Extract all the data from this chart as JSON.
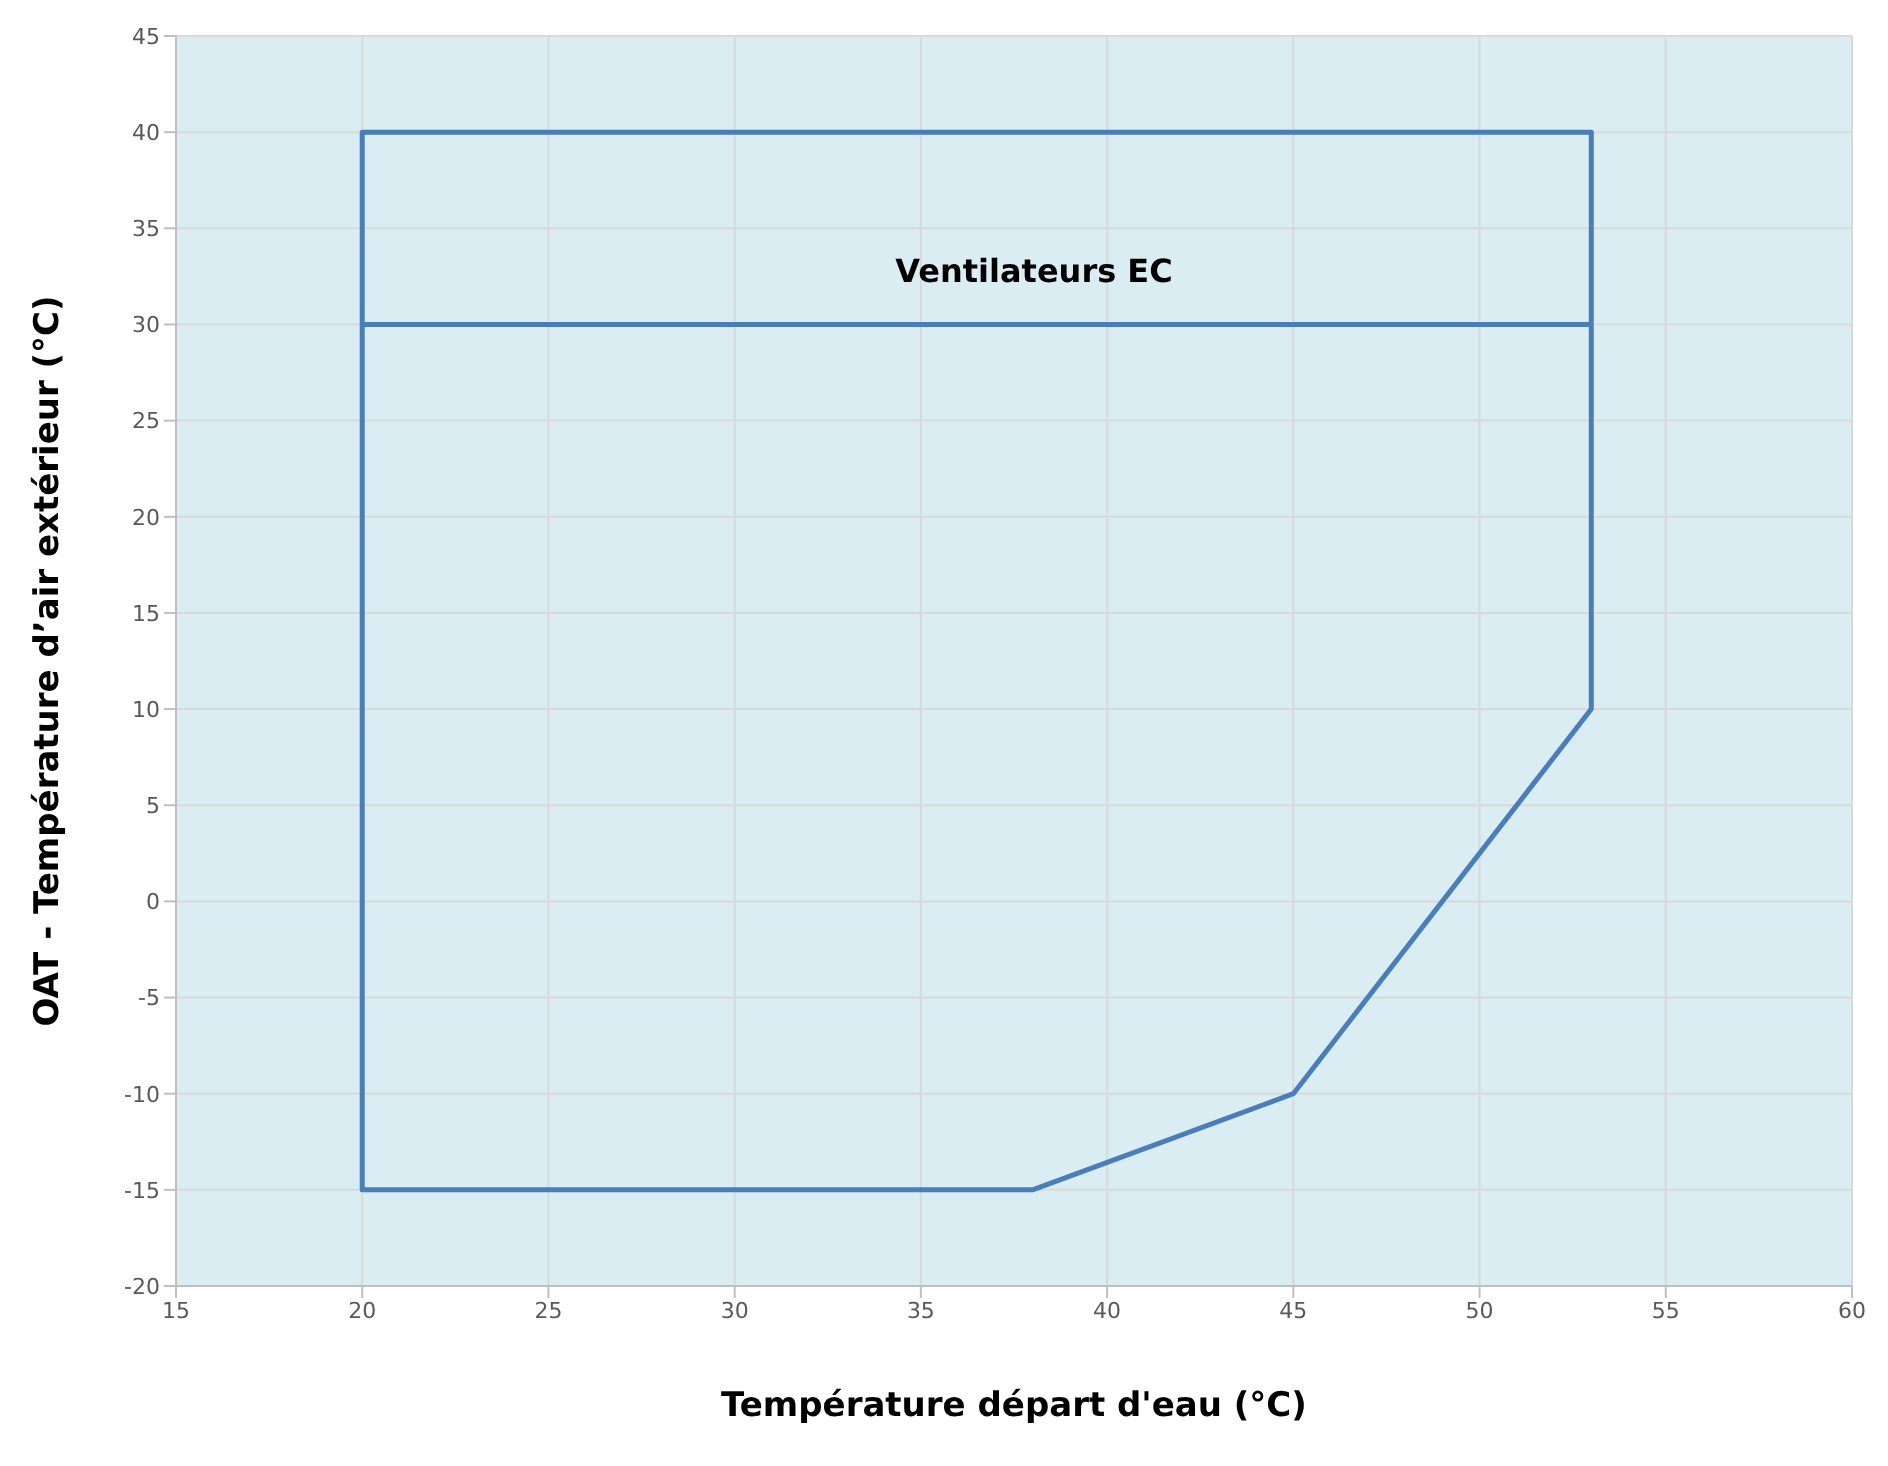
{
  "chart_data": {
    "type": "line",
    "xlabel": "Température départ d'eau (°C)",
    "ylabel": "OAT - Température d’air extérieur (°C)",
    "series": [
      {
        "color": "#4a7ebb",
        "x": [
          20,
          53,
          53,
          20,
          20,
          38,
          45,
          53,
          53
        ],
        "values": [
          30,
          30,
          40,
          40,
          -15,
          -15,
          -10,
          10,
          30
        ]
      }
    ],
    "annotations": [
      "Ventilateurs EC"
    ],
    "xlim": [
      15,
      60
    ],
    "xticks": [
      15,
      20,
      25,
      30,
      35,
      40,
      45,
      50,
      55,
      60
    ],
    "ylim": [
      -20,
      45
    ],
    "yticks": [
      -20,
      -15,
      -10,
      -5,
      0,
      5,
      10,
      15,
      20,
      25,
      30,
      35,
      40,
      45
    ],
    "grid": true,
    "marker": "none",
    "line_style": "solid"
  }
}
